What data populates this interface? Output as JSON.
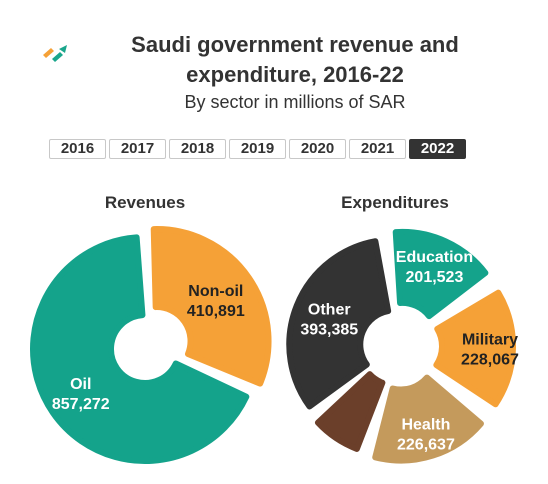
{
  "title_line1": "Saudi government revenue and",
  "title_line2": "expenditure, 2016-22",
  "subtitle": "By sector in millions of SAR",
  "years": [
    "2016",
    "2017",
    "2018",
    "2019",
    "2020",
    "2021",
    "2022"
  ],
  "selected_year": "2022",
  "colors": {
    "logo_orange": "#f5a137",
    "logo_teal": "#1aa68c",
    "active_year_bg": "#333333"
  },
  "chart_data": [
    {
      "type": "pie",
      "title": "Revenues",
      "slices": [
        {
          "label": "Non-oil",
          "value": 410891,
          "display": "410,891",
          "color": "#f5a137"
        },
        {
          "label": "Oil",
          "value": 857272,
          "display": "857,272",
          "color": "#14a38b"
        }
      ]
    },
    {
      "type": "pie",
      "title": "Expenditures",
      "slices": [
        {
          "label": "Other",
          "value": 393385,
          "display": "393,385",
          "color": "#333333"
        },
        {
          "label": "Education",
          "value": 201523,
          "display": "201,523",
          "color": "#14a38b"
        },
        {
          "label": "Military",
          "value": 228067,
          "display": "228,067",
          "color": "#f5a137"
        },
        {
          "label": "Health",
          "value": 226637,
          "display": "226,637",
          "color": "#c49a5c"
        },
        {
          "label": "",
          "value": 105000,
          "display": "",
          "color": "#6b3f2a"
        }
      ]
    }
  ]
}
